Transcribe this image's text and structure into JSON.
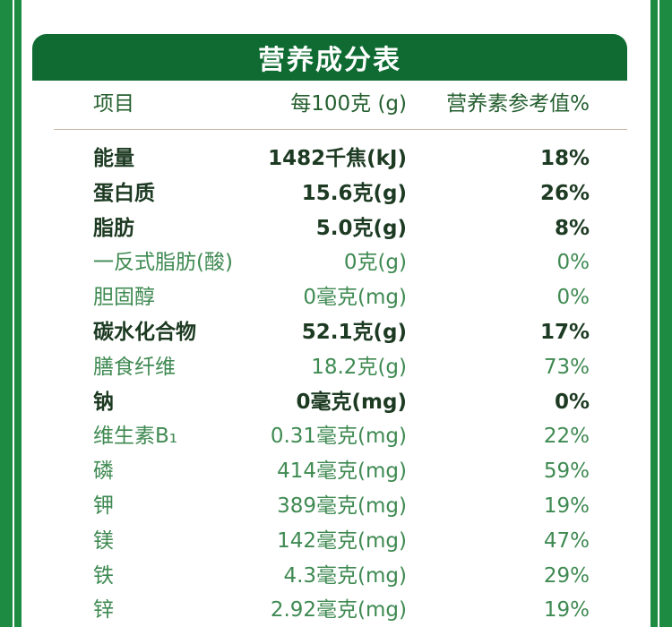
{
  "title": "营养成分表",
  "header": {
    "item": "项目",
    "per100": "每100克 (g)",
    "nrv": "营养素参考值%"
  },
  "rows": [
    {
      "name": "能量",
      "amount": "1482千焦(kJ)",
      "nrv": "18%",
      "bold": true
    },
    {
      "name": "蛋白质",
      "amount": "15.6克(g)",
      "nrv": "26%",
      "bold": true
    },
    {
      "name": "脂肪",
      "amount": "5.0克(g)",
      "nrv": "8%",
      "bold": true
    },
    {
      "name": "一反式脂肪(酸)",
      "amount": "0克(g)",
      "nrv": "0%",
      "bold": false
    },
    {
      "name": "胆固醇",
      "amount": "0毫克(mg)",
      "nrv": "0%",
      "bold": false
    },
    {
      "name": "碳水化合物",
      "amount": "52.1克(g)",
      "nrv": "17%",
      "bold": true
    },
    {
      "name": "膳食纤维",
      "amount": "18.2克(g)",
      "nrv": "73%",
      "bold": false
    },
    {
      "name": "钠",
      "amount": "0毫克(mg)",
      "nrv": "0%",
      "bold": true
    },
    {
      "name": "维生素B₁",
      "amount": "0.31毫克(mg)",
      "nrv": "22%",
      "bold": false
    },
    {
      "name": "磷",
      "amount": "414毫克(mg)",
      "nrv": "59%",
      "bold": false
    },
    {
      "name": "钾",
      "amount": "389毫克(mg)",
      "nrv": "19%",
      "bold": false
    },
    {
      "name": "镁",
      "amount": "142毫克(mg)",
      "nrv": "47%",
      "bold": false
    },
    {
      "name": "铁",
      "amount": "4.3毫克(mg)",
      "nrv": "29%",
      "bold": false
    },
    {
      "name": "锌",
      "amount": "2.92毫克(mg)",
      "nrv": "19%",
      "bold": false
    }
  ],
  "colors": {
    "frame_green": "#1e8b43",
    "title_green": "#0f6b32",
    "bold_text": "#1d3a22",
    "regular_text": "#3f8a52"
  }
}
